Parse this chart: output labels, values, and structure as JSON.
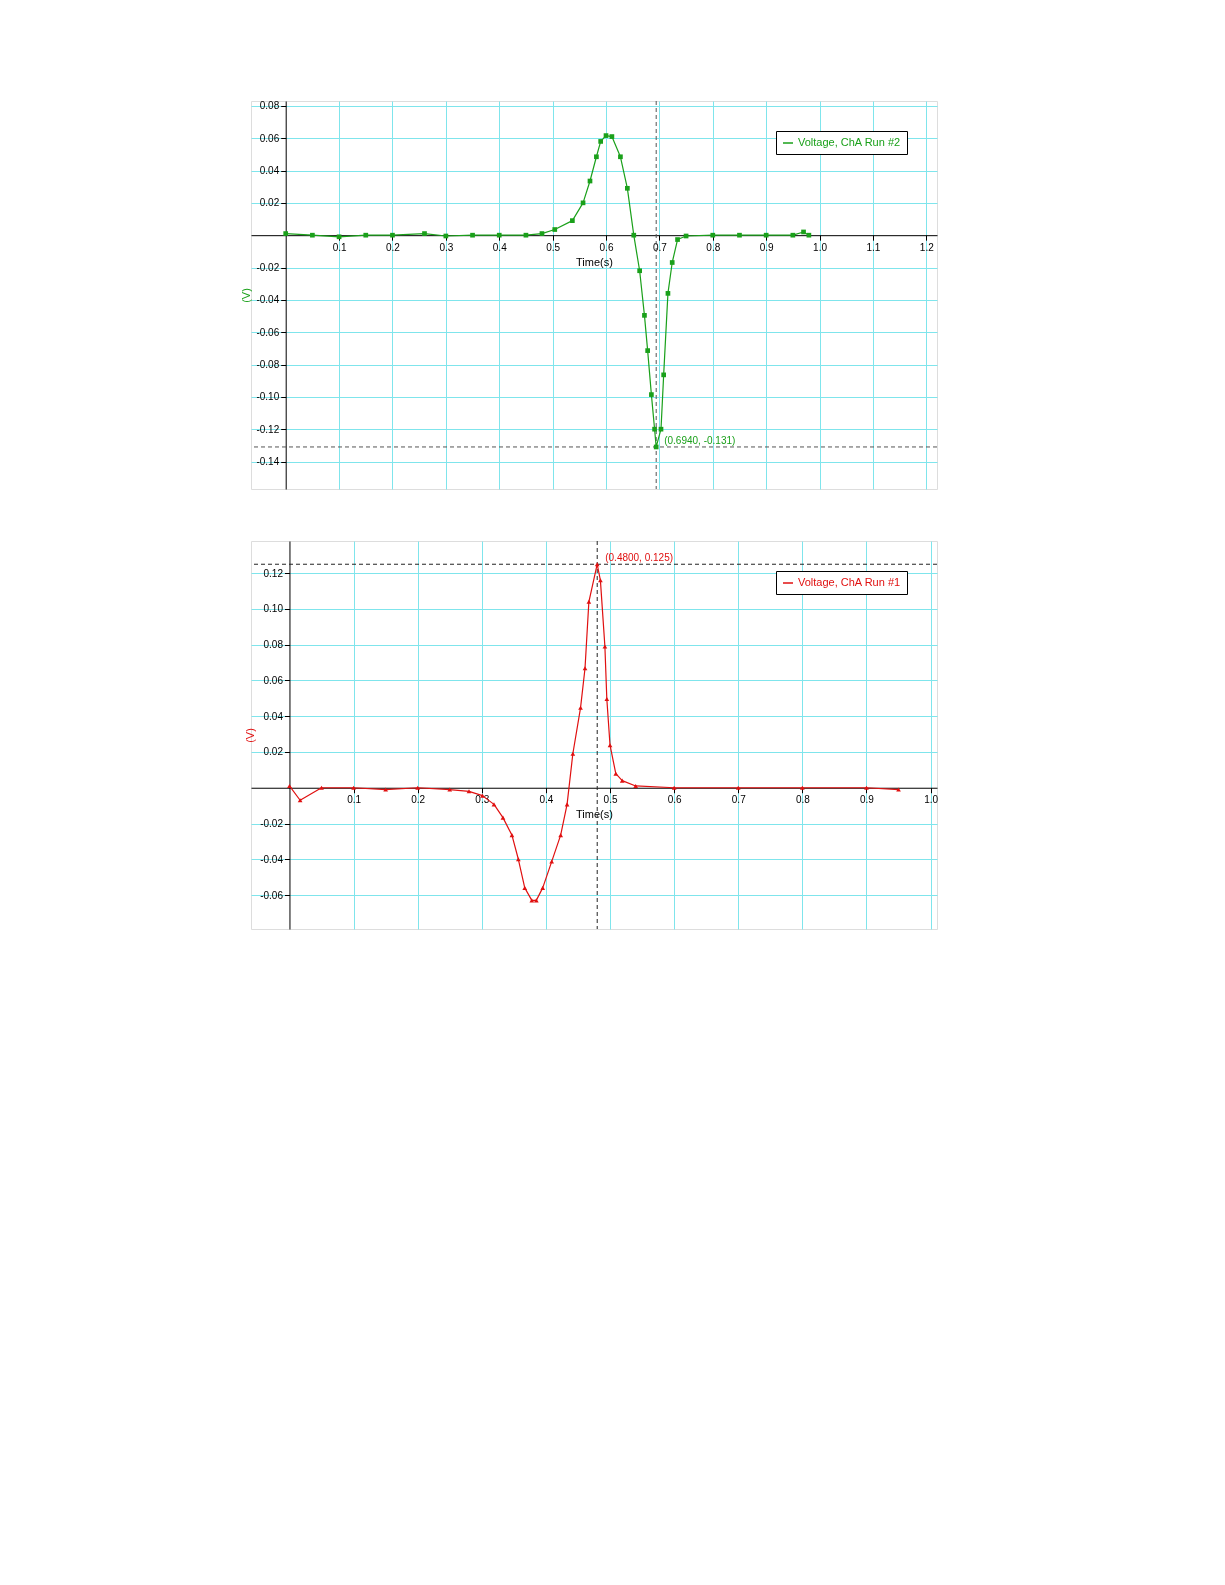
{
  "chart_data": [
    {
      "type": "line",
      "xlabel": "Time(s)",
      "ylabel": "(V)",
      "xlim": [
        -0.065,
        1.22
      ],
      "ylim": [
        -0.157,
        0.083
      ],
      "xticks": [
        0.1,
        0.2,
        0.3,
        0.4,
        0.5,
        0.6,
        0.7,
        0.8,
        0.9,
        {
          "value": 1,
          "label": "1.0"
        },
        1.1,
        1.2
      ],
      "yticks": [
        0.08,
        0.06,
        0.04,
        0.02,
        -0.02,
        -0.04,
        -0.06,
        -0.08,
        {
          "value": -0.1,
          "label": "-0.10"
        },
        -0.12,
        -0.14
      ],
      "grid": true,
      "legend": "top right",
      "marker": "square",
      "line_style": "solid",
      "series": [
        {
          "name": "Voltage, ChA Run #2",
          "color": "#1aa01a",
          "x": [
            0,
            0.05,
            0.1,
            0.15,
            0.2,
            0.26,
            0.3,
            0.35,
            0.4,
            0.45,
            0.48,
            0.504,
            0.537,
            0.557,
            0.57,
            0.582,
            0.59,
            0.6,
            0.611,
            0.627,
            0.64,
            0.652,
            0.663,
            0.672,
            0.678,
            0.685,
            0.691,
            0.694,
            0.703,
            0.708,
            0.716,
            0.724,
            0.734,
            0.75,
            0.8,
            0.85,
            0.9,
            0.95,
            0.97,
            0.98
          ],
          "values": [
            0.001,
            0.0,
            -0.001,
            0.0,
            0.0,
            0.001,
            -0.0005,
            0.0,
            0.0,
            0.0,
            0.001,
            0.0035,
            0.009,
            0.02,
            0.0335,
            0.0485,
            0.058,
            0.0616,
            0.061,
            0.0485,
            0.029,
            0.0,
            -0.022,
            -0.0496,
            -0.0714,
            -0.0986,
            -0.12,
            -0.131,
            -0.12,
            -0.0864,
            -0.036,
            -0.0169,
            -0.0027,
            -0.0005,
            0.0,
            0.0,
            0.0,
            0.0,
            0.002,
            0.0
          ]
        }
      ],
      "ref_lines": [
        {
          "axis": "x",
          "value": 0.694,
          "color": "#555555",
          "line_style": "dashed"
        },
        {
          "axis": "y",
          "value": -0.131,
          "color": "#555555",
          "line_style": "dashed"
        }
      ],
      "annotations": [
        {
          "text": "(0.6940, -0.131)",
          "x": 0.694,
          "y": -0.131
        }
      ]
    },
    {
      "type": "line",
      "xlabel": "Time(s)",
      "ylabel": "(V)",
      "xlim": [
        -0.06,
        1.01
      ],
      "ylim": [
        -0.079,
        0.138
      ],
      "xticks": [
        0.1,
        0.2,
        0.3,
        0.4,
        0.5,
        0.6,
        0.7,
        0.8,
        0.9,
        {
          "value": 1,
          "label": "1.0"
        }
      ],
      "yticks": [
        0.12,
        {
          "value": 0.1,
          "label": "0.10"
        },
        0.08,
        0.06,
        0.04,
        0.02,
        -0.02,
        -0.04,
        -0.06
      ],
      "grid": true,
      "legend": "top right",
      "marker": "triangle",
      "line_style": "solid",
      "series": [
        {
          "name": "Voltage, ChA Run #1",
          "color": "#e01010",
          "x": [
            0,
            0.0166,
            0.05,
            0.1,
            0.15,
            0.2,
            0.25,
            0.28,
            0.301,
            0.319,
            0.333,
            0.347,
            0.357,
            0.367,
            0.378,
            0.385,
            0.395,
            0.409,
            0.423,
            0.433,
            0.442,
            0.454,
            0.461,
            0.467,
            0.48,
            0.485,
            0.492,
            0.495,
            0.5,
            0.509,
            0.519,
            0.54,
            0.6,
            0.7,
            0.8,
            0.9,
            0.95
          ],
          "values": [
            0.001,
            -0.007,
            0.0,
            0.0,
            -0.001,
            0.0,
            -0.001,
            -0.002,
            -0.0044,
            -0.0093,
            -0.0167,
            -0.0265,
            -0.04,
            -0.056,
            -0.063,
            -0.063,
            -0.056,
            -0.0413,
            -0.0265,
            -0.0093,
            0.019,
            0.0447,
            0.0668,
            0.104,
            0.125,
            0.116,
            0.079,
            0.0496,
            0.0238,
            0.0079,
            0.004,
            0.001,
            0.0,
            0.0,
            0.0,
            0.0,
            -0.001
          ]
        }
      ],
      "ref_lines": [
        {
          "axis": "x",
          "value": 0.48,
          "color": "#222222",
          "line_style": "dashed"
        },
        {
          "axis": "y",
          "value": 0.125,
          "color": "#222222",
          "line_style": "dashed"
        }
      ],
      "annotations": [
        {
          "text": "(0.4800, 0.125)",
          "x": 0.48,
          "y": 0.125
        }
      ]
    }
  ]
}
